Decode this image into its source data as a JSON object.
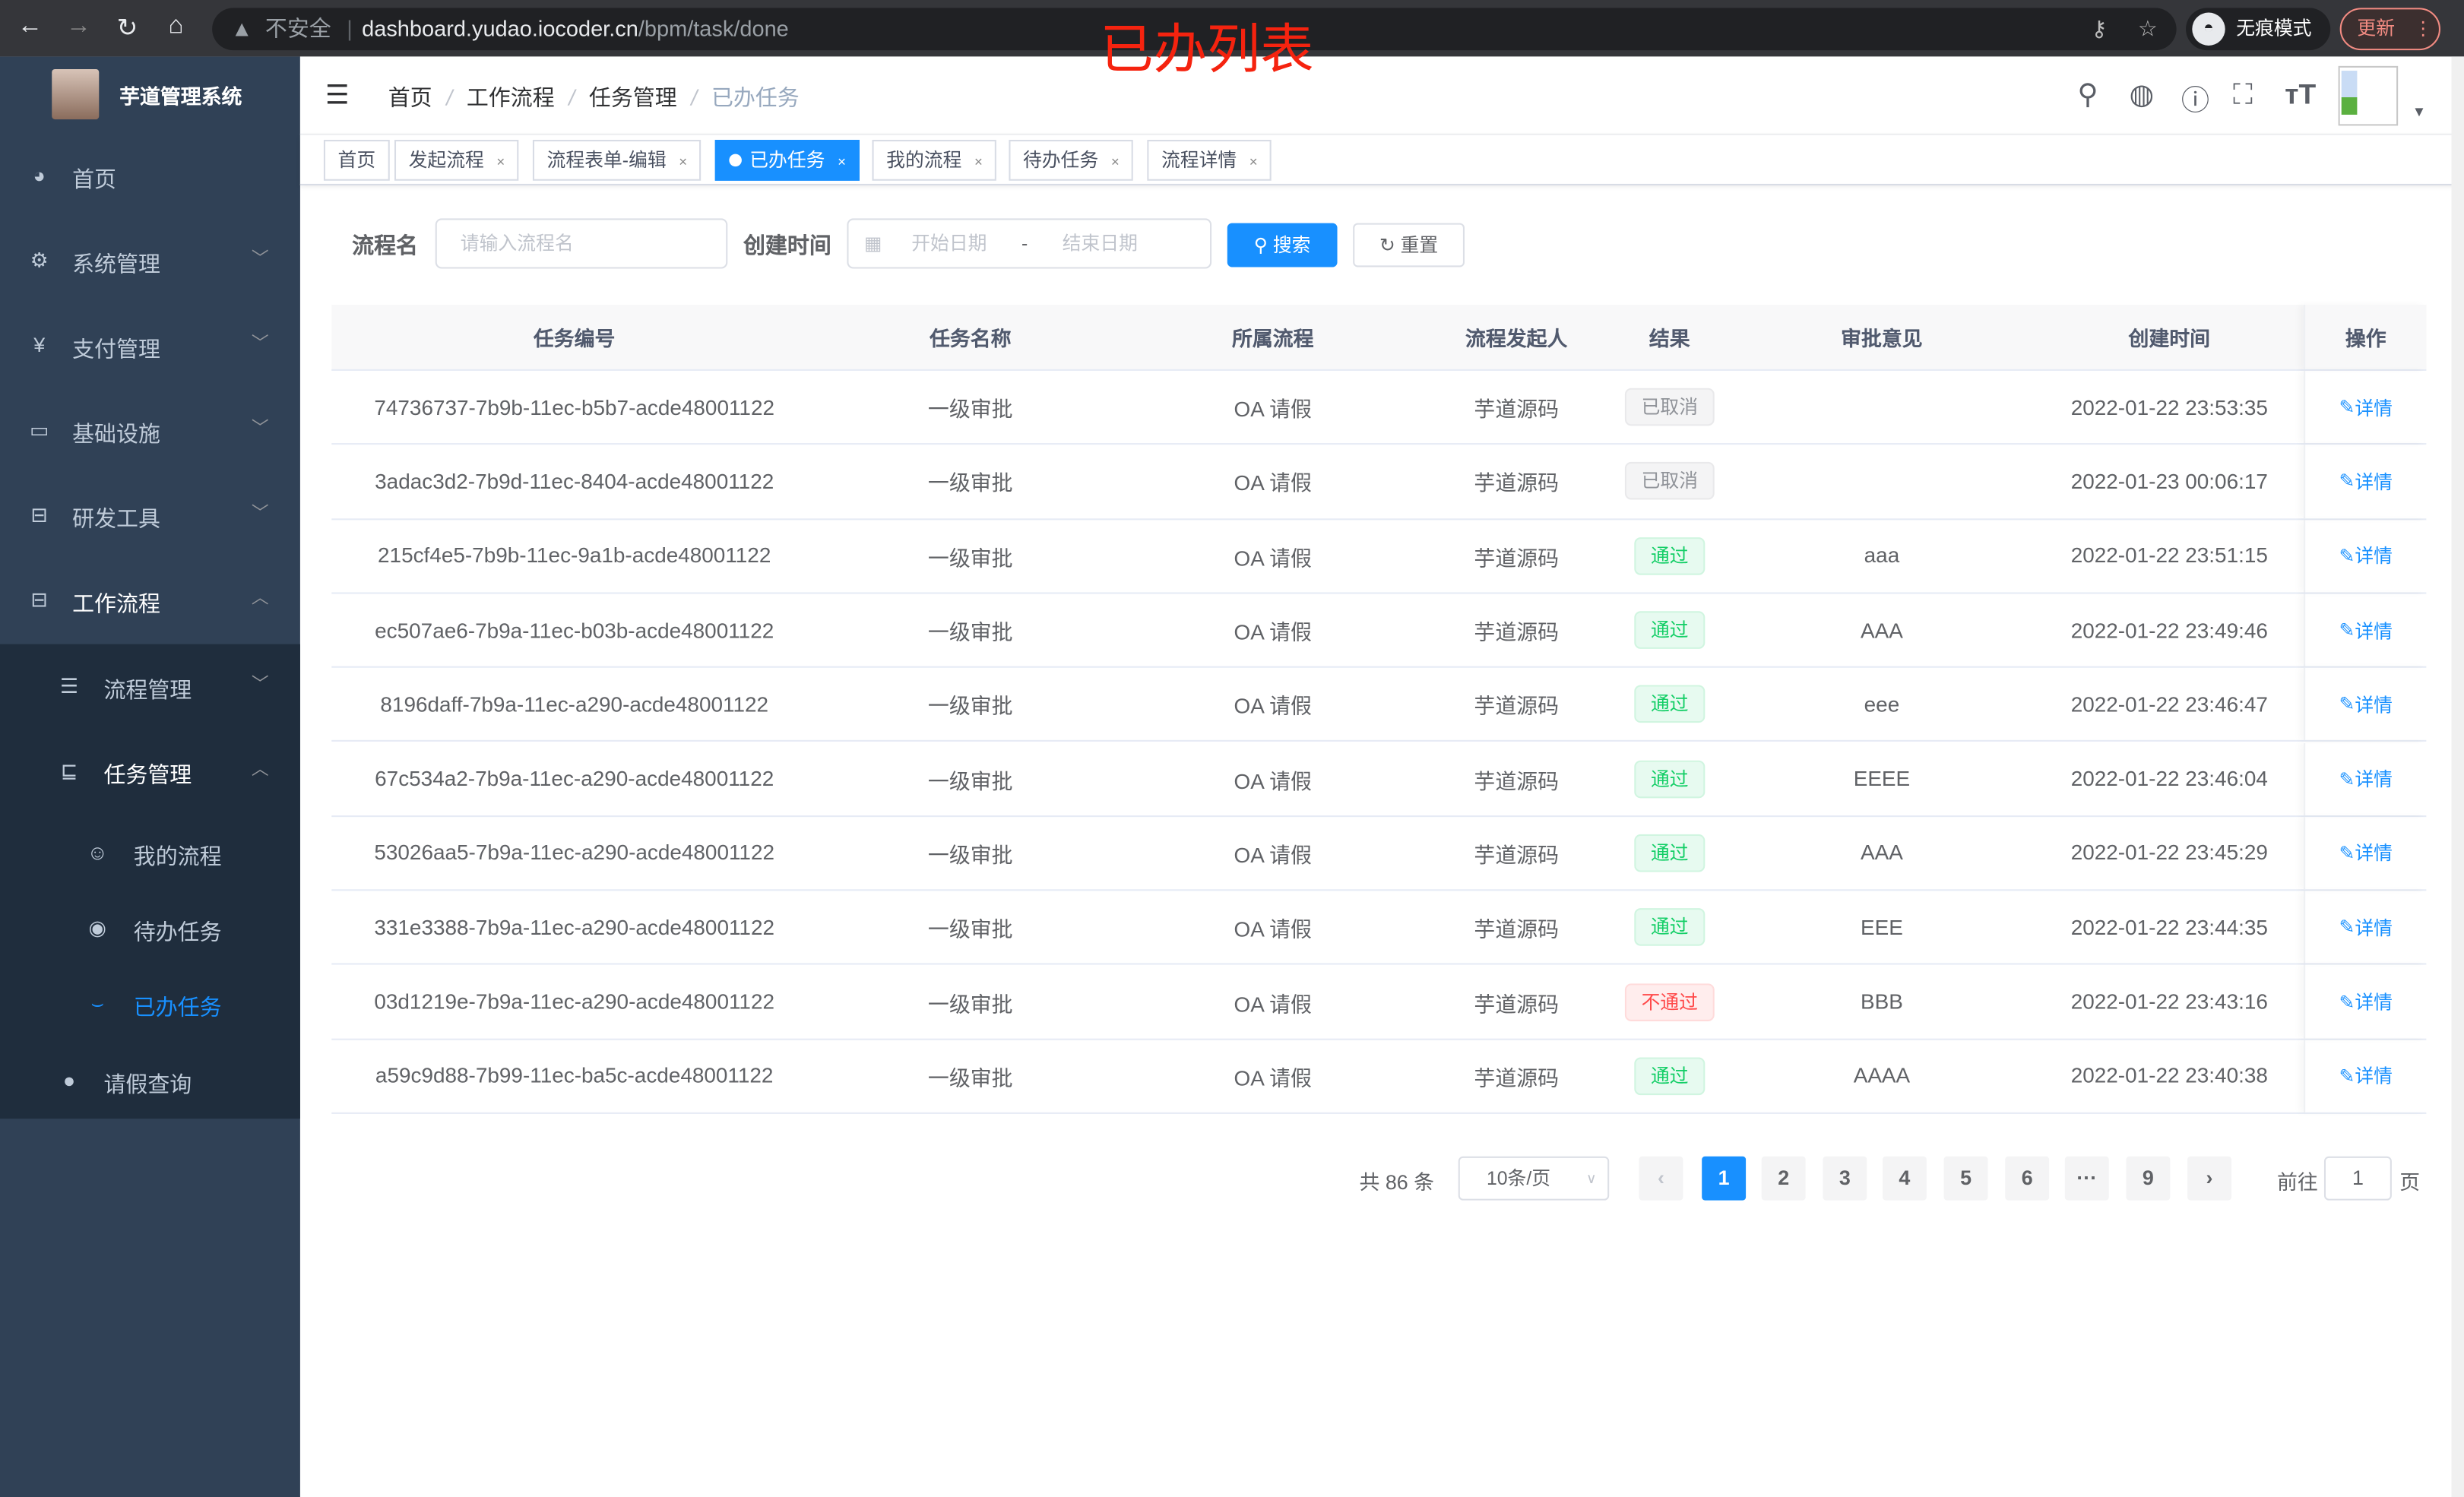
{
  "browser": {
    "insecure_label": "不安全",
    "url_host": "dashboard.yudao.iocoder.cn",
    "url_path": "/bpm/task/done",
    "incognito_label": "无痕模式",
    "update_label": "更新",
    "annotation": "已办列表"
  },
  "sidebar": {
    "title": "芋道管理系统",
    "items": [
      {
        "label": "首页",
        "icon": "dashboard-icon"
      },
      {
        "label": "系统管理",
        "icon": "gear-icon"
      },
      {
        "label": "支付管理",
        "icon": "yen-icon"
      },
      {
        "label": "基础设施",
        "icon": "monitor-icon"
      },
      {
        "label": "研发工具",
        "icon": "toolbox-icon"
      },
      {
        "label": "工作流程",
        "icon": "toolbox-icon"
      }
    ],
    "sub_items": [
      {
        "label": "流程管理",
        "icon": "list-icon"
      },
      {
        "label": "任务管理",
        "icon": "tree-icon"
      },
      {
        "label": "我的流程",
        "icon": "robot-icon"
      },
      {
        "label": "待办任务",
        "icon": "eye-icon"
      },
      {
        "label": "已办任务",
        "icon": "eye-closed-icon"
      },
      {
        "label": "请假查询",
        "icon": "user-icon"
      }
    ]
  },
  "breadcrumb": [
    "首页",
    "工作流程",
    "任务管理",
    "已办任务"
  ],
  "tags": [
    "首页",
    "发起流程",
    "流程表单-编辑",
    "已办任务",
    "我的流程",
    "待办任务",
    "流程详情"
  ],
  "search": {
    "name_label": "流程名",
    "name_placeholder": "请输入流程名",
    "time_label": "创建时间",
    "start_placeholder": "开始日期",
    "range_sep": "-",
    "end_placeholder": "结束日期",
    "search_btn": "搜索",
    "reset_btn": "重置"
  },
  "table": {
    "headers": [
      "任务编号",
      "任务名称",
      "所属流程",
      "流程发起人",
      "结果",
      "审批意见",
      "创建时间",
      "操作"
    ],
    "action_label": "详情",
    "rows": [
      {
        "id": "74736737-7b9b-11ec-b5b7-acde48001122",
        "name": "一级审批",
        "process": "OA 请假",
        "starter": "芋道源码",
        "result": "已取消",
        "status": "cancel",
        "comment": "",
        "time": "2022-01-22 23:53:35"
      },
      {
        "id": "3adac3d2-7b9d-11ec-8404-acde48001122",
        "name": "一级审批",
        "process": "OA 请假",
        "starter": "芋道源码",
        "result": "已取消",
        "status": "cancel",
        "comment": "",
        "time": "2022-01-23 00:06:17"
      },
      {
        "id": "215cf4e5-7b9b-11ec-9a1b-acde48001122",
        "name": "一级审批",
        "process": "OA 请假",
        "starter": "芋道源码",
        "result": "通过",
        "status": "pass",
        "comment": "aaa",
        "time": "2022-01-22 23:51:15"
      },
      {
        "id": "ec507ae6-7b9a-11ec-b03b-acde48001122",
        "name": "一级审批",
        "process": "OA 请假",
        "starter": "芋道源码",
        "result": "通过",
        "status": "pass",
        "comment": "AAA",
        "time": "2022-01-22 23:49:46"
      },
      {
        "id": "8196daff-7b9a-11ec-a290-acde48001122",
        "name": "一级审批",
        "process": "OA 请假",
        "starter": "芋道源码",
        "result": "通过",
        "status": "pass",
        "comment": "eee",
        "time": "2022-01-22 23:46:47"
      },
      {
        "id": "67c534a2-7b9a-11ec-a290-acde48001122",
        "name": "一级审批",
        "process": "OA 请假",
        "starter": "芋道源码",
        "result": "通过",
        "status": "pass",
        "comment": "EEEE",
        "time": "2022-01-22 23:46:04"
      },
      {
        "id": "53026aa5-7b9a-11ec-a290-acde48001122",
        "name": "一级审批",
        "process": "OA 请假",
        "starter": "芋道源码",
        "result": "通过",
        "status": "pass",
        "comment": "AAA",
        "time": "2022-01-22 23:45:29"
      },
      {
        "id": "331e3388-7b9a-11ec-a290-acde48001122",
        "name": "一级审批",
        "process": "OA 请假",
        "starter": "芋道源码",
        "result": "通过",
        "status": "pass",
        "comment": "EEE",
        "time": "2022-01-22 23:44:35"
      },
      {
        "id": "03d1219e-7b9a-11ec-a290-acde48001122",
        "name": "一级审批",
        "process": "OA 请假",
        "starter": "芋道源码",
        "result": "不通过",
        "status": "reject",
        "comment": "BBB",
        "time": "2022-01-22 23:43:16"
      },
      {
        "id": "a59c9d88-7b99-11ec-ba5c-acde48001122",
        "name": "一级审批",
        "process": "OA 请假",
        "starter": "芋道源码",
        "result": "通过",
        "status": "pass",
        "comment": "AAAA",
        "time": "2022-01-22 23:40:38"
      }
    ]
  },
  "pagination": {
    "total_text": "共 86 条",
    "page_size": "10条/页",
    "pages": [
      "1",
      "2",
      "3",
      "4",
      "5",
      "6",
      "···",
      "9"
    ],
    "current": "1",
    "goto_label": "前往",
    "goto_value": "1",
    "page_suffix": "页"
  },
  "colors": {
    "primary": "#1890ff",
    "sidebar": "#304156",
    "submenu": "#1f2d3d",
    "pass": "#13ce66",
    "reject": "#ff4949",
    "cancel": "#909399",
    "annotation": "#f5230f"
  }
}
